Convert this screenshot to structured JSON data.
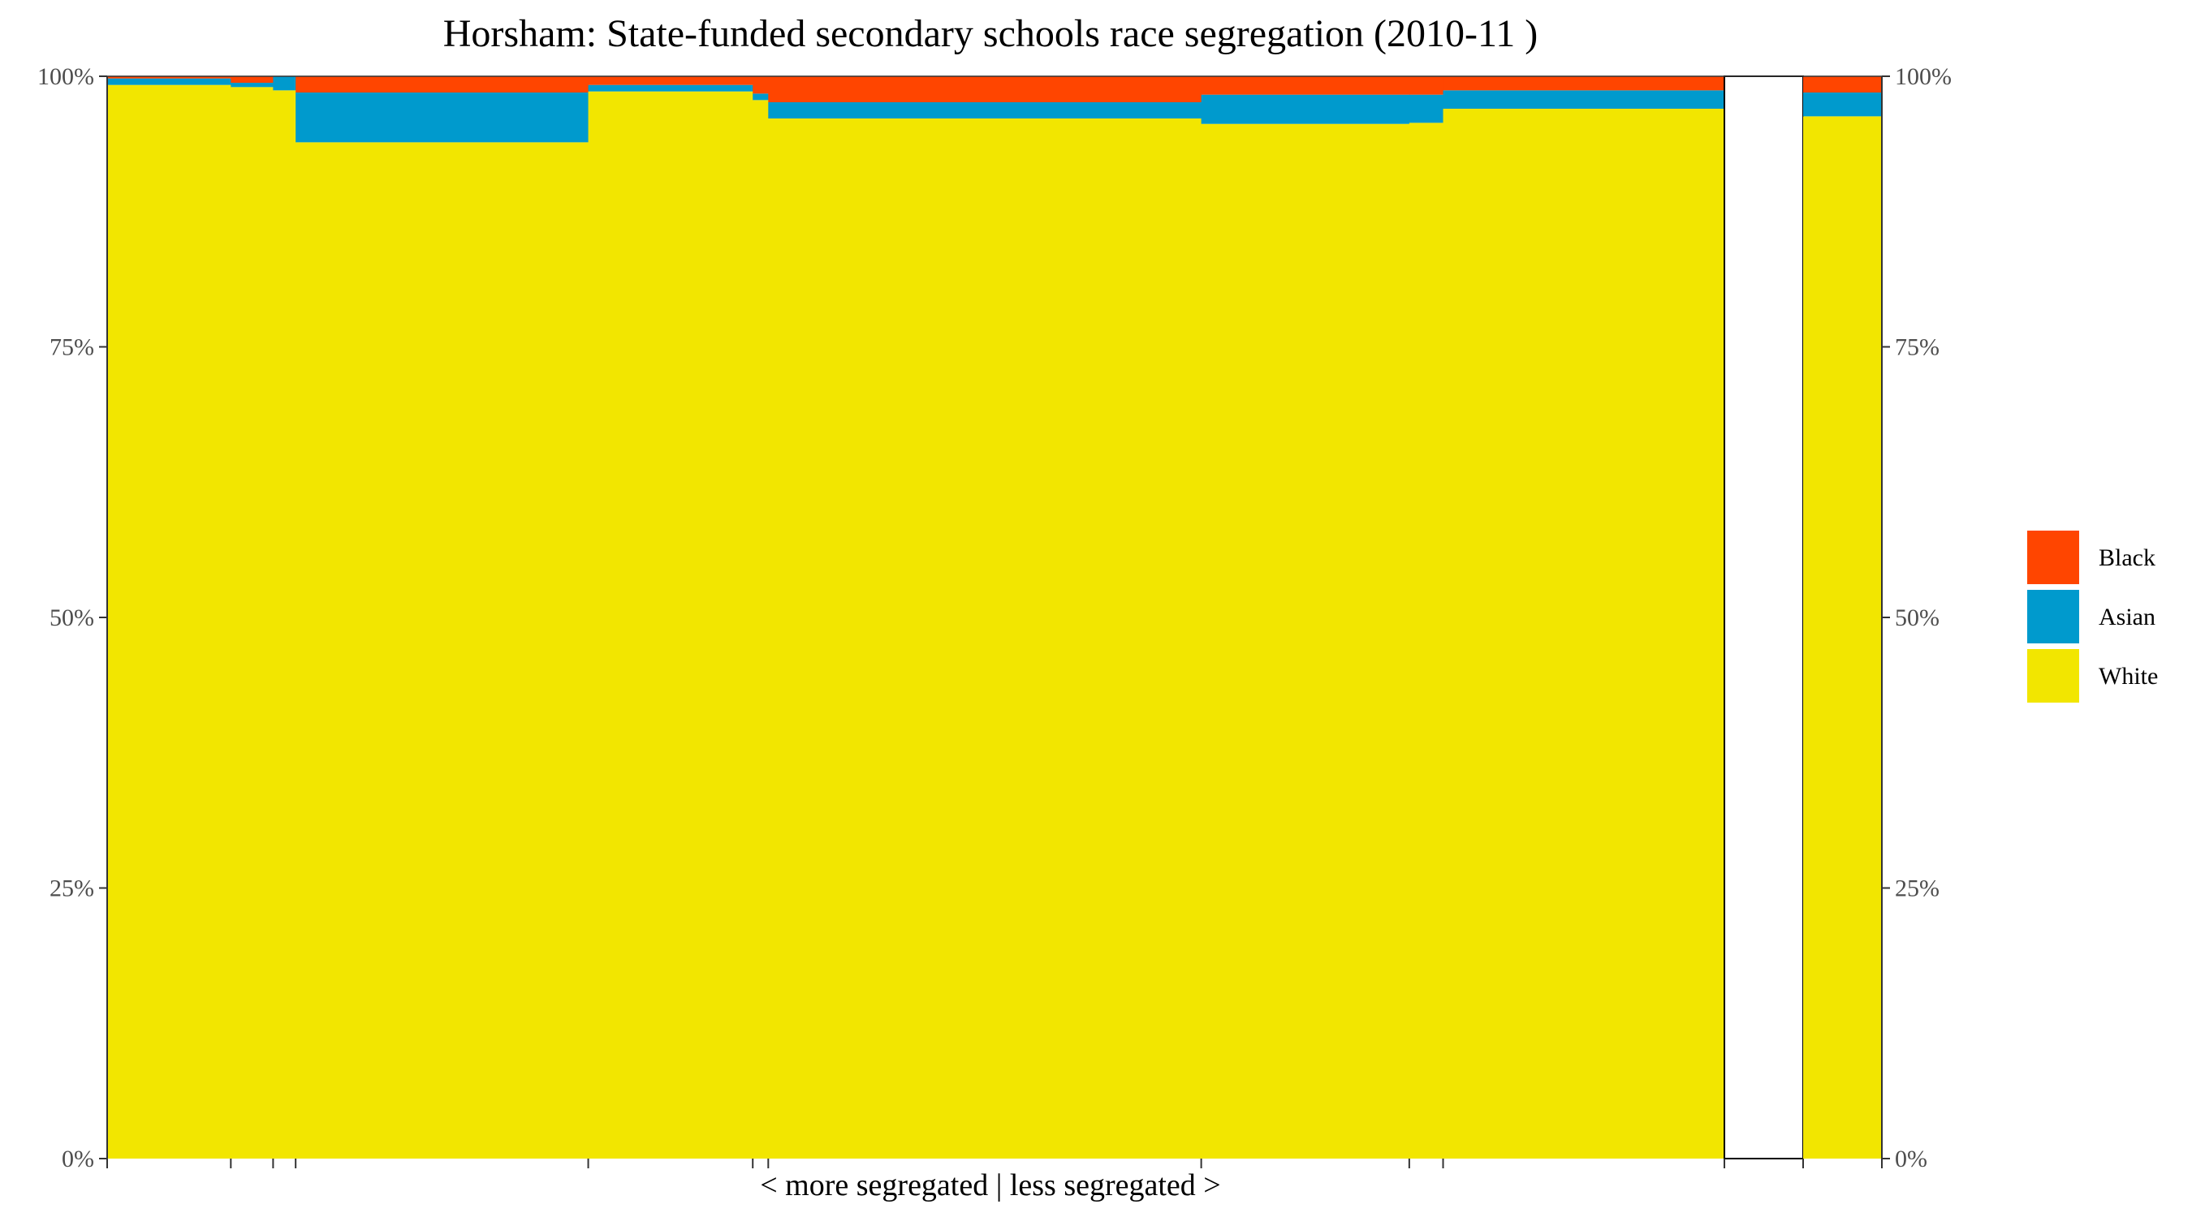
{
  "chart_data": {
    "type": "bar",
    "title": "Horsham: State-funded secondary schools race segregation (2010-11 )",
    "xlabel": "< more segregated | less segregated >",
    "ylabel": "",
    "ylim": [
      0,
      100
    ],
    "yticks": [
      "0%",
      "25%",
      "50%",
      "75%",
      "100%"
    ],
    "stack_order": [
      "White",
      "Asian",
      "Black"
    ],
    "legend": {
      "position": "right",
      "entries": [
        {
          "name": "Black",
          "color": "#FF4500"
        },
        {
          "name": "Asian",
          "color": "#009ACD"
        },
        {
          "name": "White",
          "color": "#F2E600"
        }
      ]
    },
    "schools": [
      {
        "share": 7.02,
        "White": 99.2,
        "Asian": 0.6,
        "Black": 0.2
      },
      {
        "share": 2.4,
        "White": 99.0,
        "Asian": 0.4,
        "Black": 0.6
      },
      {
        "share": 1.28,
        "White": 98.7,
        "Asian": 1.3,
        "Black": 0.0
      },
      {
        "share": 16.61,
        "White": 93.9,
        "Asian": 4.6,
        "Black": 1.5
      },
      {
        "share": 9.34,
        "White": 98.6,
        "Asian": 0.6,
        "Black": 0.8
      },
      {
        "share": 0.88,
        "White": 97.8,
        "Asian": 0.6,
        "Black": 1.6
      },
      {
        "share": 24.58,
        "White": 96.1,
        "Asian": 1.5,
        "Black": 2.4
      },
      {
        "share": 11.81,
        "White": 95.6,
        "Asian": 2.7,
        "Black": 1.7
      },
      {
        "share": 1.92,
        "White": 95.7,
        "Asian": 2.6,
        "Black": 1.7
      },
      {
        "share": 15.97,
        "White": 97.0,
        "Asian": 1.7,
        "Black": 1.3
      },
      {
        "share": 4.47,
        "White": 0,
        "Asian": 0,
        "Black": 0,
        "blank": true
      },
      {
        "share": 4.47,
        "White": 96.3,
        "Asian": 2.2,
        "Black": 1.5
      }
    ]
  }
}
